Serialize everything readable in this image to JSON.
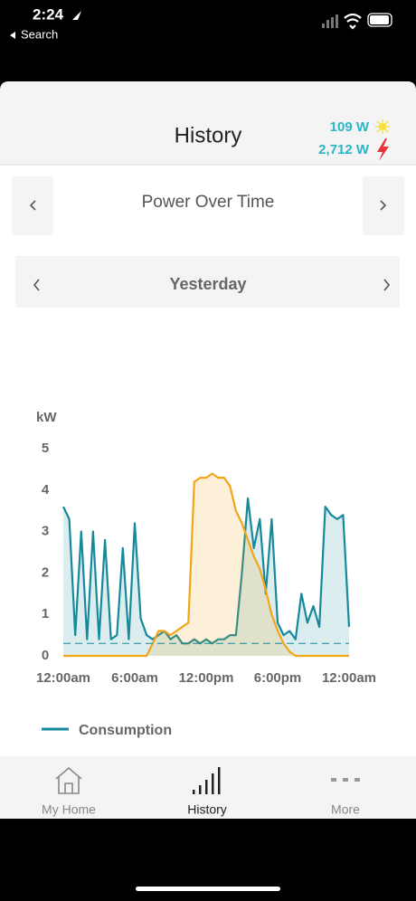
{
  "status_bar": {
    "time": "2:24",
    "back": "Search"
  },
  "header": {
    "title": "History",
    "solar": "109 W",
    "grid": "2,712 W"
  },
  "view_selector": {
    "label": "Power Over Time"
  },
  "date_selector": {
    "label": "Yesterday"
  },
  "chart_data": {
    "type": "line",
    "ylabel": "kW",
    "x": [
      0,
      0.5,
      1,
      1.5,
      2,
      2.5,
      3,
      3.5,
      4,
      4.5,
      5,
      5.5,
      6,
      6.5,
      7,
      7.5,
      8,
      8.5,
      9,
      9.5,
      10,
      10.5,
      11,
      11.5,
      12,
      12.5,
      13,
      13.5,
      14,
      14.5,
      15,
      15.5,
      16,
      16.5,
      17,
      17.5,
      18,
      18.5,
      19,
      19.5,
      20,
      20.5,
      21,
      21.5,
      22,
      22.5,
      23,
      23.5,
      24
    ],
    "series": [
      {
        "name": "Consumption",
        "color": "#16899a",
        "values": [
          3.6,
          3.3,
          0.5,
          3.0,
          0.4,
          3.0,
          0.4,
          2.8,
          0.4,
          0.5,
          2.6,
          0.4,
          3.2,
          0.9,
          0.5,
          0.4,
          0.5,
          0.6,
          0.4,
          0.5,
          0.3,
          0.3,
          0.4,
          0.3,
          0.4,
          0.3,
          0.4,
          0.4,
          0.5,
          0.5,
          2.0,
          3.8,
          2.6,
          3.3,
          1.5,
          3.3,
          0.8,
          0.5,
          0.6,
          0.4,
          1.5,
          0.8,
          1.2,
          0.7,
          3.6,
          3.4,
          3.3,
          3.4,
          0.7
        ]
      },
      {
        "color": "#f2a516",
        "values": [
          0,
          0,
          0,
          0,
          0,
          0,
          0,
          0,
          0,
          0,
          0,
          0,
          0,
          0,
          0,
          0.3,
          0.6,
          0.6,
          0.5,
          0.6,
          0.7,
          0.8,
          4.2,
          4.3,
          4.3,
          4.4,
          4.3,
          4.3,
          4.1,
          3.5,
          3.2,
          2.8,
          2.4,
          2.1,
          1.6,
          1.0,
          0.6,
          0.3,
          0.1,
          0,
          0,
          0,
          0,
          0,
          0,
          0,
          0,
          0,
          0
        ]
      }
    ],
    "reference_line": 0.3,
    "xlim": [
      0,
      24
    ],
    "xticks": [
      {
        "value": 0,
        "label": "12:00am"
      },
      {
        "value": 6,
        "label": "6:00am"
      },
      {
        "value": 12,
        "label": "12:00pm"
      },
      {
        "value": 18,
        "label": "6:00pm"
      },
      {
        "value": 24,
        "label": "12:00am"
      }
    ],
    "ylim": [
      0,
      5
    ],
    "yticks": [
      0,
      1,
      2,
      3,
      4,
      5
    ]
  },
  "tabs": [
    {
      "label": "My Home"
    },
    {
      "label": "History"
    },
    {
      "label": "More"
    }
  ]
}
